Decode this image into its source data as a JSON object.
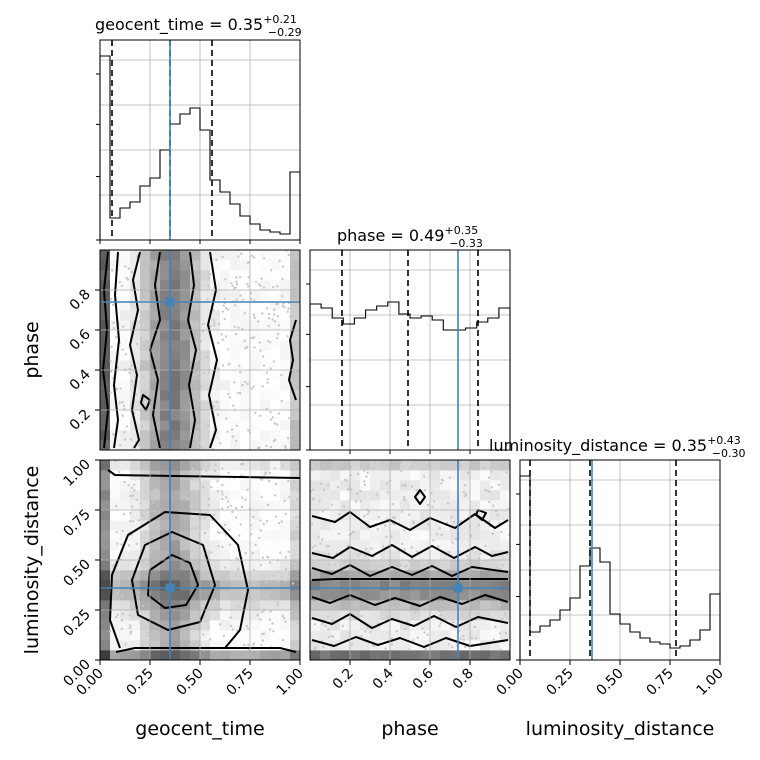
{
  "chart_data": {
    "type": "corner",
    "parameters": [
      "geocent_time",
      "phase",
      "luminosity_distance"
    ],
    "truths": {
      "geocent_time": 0.35,
      "phase": 0.74,
      "luminosity_distance": 0.36
    },
    "ranges": {
      "geocent_time": [
        0,
        1
      ],
      "phase": [
        0,
        1
      ],
      "luminosity_distance": [
        0,
        1
      ]
    },
    "titles": [
      {
        "param": "geocent_time",
        "text": "geocent_time = 0.35",
        "plus": "+0.21",
        "minus": "−0.29"
      },
      {
        "param": "phase",
        "text": "phase = 0.49",
        "plus": "+0.35",
        "minus": "−0.33"
      },
      {
        "param": "luminosity_distance",
        "text": "luminosity_distance = 0.35",
        "plus": "+0.43",
        "minus": "−0.30"
      }
    ],
    "quantiles": {
      "geocent_time": [
        0.06,
        0.35,
        0.56
      ],
      "phase": [
        0.16,
        0.49,
        0.84
      ],
      "luminosity_distance": [
        0.05,
        0.35,
        0.78
      ]
    },
    "histograms": {
      "geocent_time": [
        0.92,
        0.11,
        0.16,
        0.19,
        0.27,
        0.31,
        0.45,
        0.58,
        0.63,
        0.66,
        0.55,
        0.3,
        0.24,
        0.18,
        0.12,
        0.08,
        0.05,
        0.04,
        0.03,
        0.34
      ],
      "phase": [
        0.73,
        0.71,
        0.66,
        0.63,
        0.66,
        0.7,
        0.72,
        0.74,
        0.68,
        0.66,
        0.67,
        0.65,
        0.6,
        0.6,
        0.61,
        0.64,
        0.66,
        0.71
      ],
      "luminosity_distance": [
        0.92,
        0.14,
        0.17,
        0.2,
        0.25,
        0.31,
        0.47,
        0.56,
        0.49,
        0.23,
        0.18,
        0.14,
        0.11,
        0.09,
        0.08,
        0.06,
        0.07,
        0.1,
        0.15,
        0.33
      ]
    },
    "ticks": {
      "geocent_time": [
        "0.00",
        "0.25",
        "0.50",
        "0.75",
        "1.00"
      ],
      "phase": [
        "0.2",
        "0.4",
        "0.6",
        "0.8"
      ],
      "luminosity_distance": [
        "0.00",
        "0.25",
        "0.50",
        "0.75",
        "1.00"
      ]
    },
    "axis_labels": {
      "x": [
        "geocent_time",
        "phase",
        "luminosity_distance"
      ],
      "y": [
        "phase",
        "luminosity_distance"
      ]
    },
    "grid": true
  }
}
